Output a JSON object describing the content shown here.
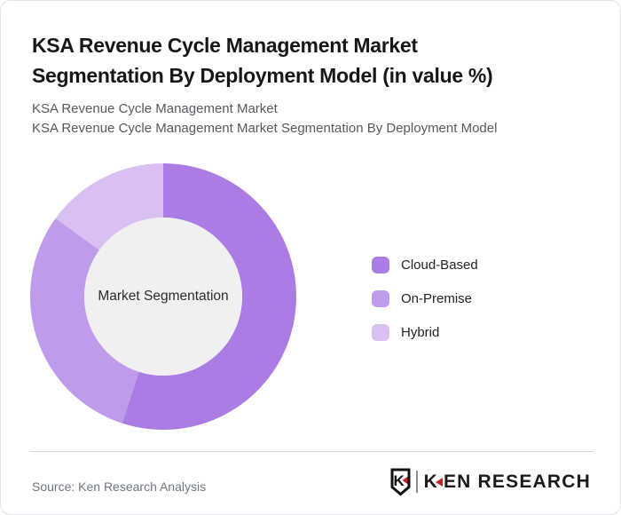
{
  "header": {
    "title_line1": "KSA Revenue Cycle Management Market",
    "title_line2": "Segmentation By Deployment Model (in value %)",
    "subtitle_line1": "KSA Revenue Cycle Management Market",
    "subtitle_line2": "KSA Revenue Cycle Management Market Segmentation By Deployment Model"
  },
  "chart_data": {
    "type": "pie",
    "subtype": "donut",
    "title": "KSA Revenue Cycle Management Market Segmentation By Deployment Model (in value %)",
    "center_label": "Market Segmentation",
    "categories": [
      "Cloud-Based",
      "On-Premise",
      "Hybrid"
    ],
    "values": [
      55,
      30,
      15
    ],
    "unit": "percent",
    "colors": [
      "#ab7de4",
      "#bf9ceb",
      "#d9c0f2"
    ],
    "hole_color": "#f0f0f0",
    "start_angle_deg": 0,
    "direction": "clockwise",
    "legend_position": "right",
    "data_labels_shown": false
  },
  "legend": {
    "items": [
      {
        "label": "Cloud-Based",
        "color": "#ab7de4"
      },
      {
        "label": "On-Premise",
        "color": "#bf9ceb"
      },
      {
        "label": "Hybrid",
        "color": "#d9c0f2"
      }
    ]
  },
  "footer": {
    "source": "Source: Ken Research Analysis",
    "brand": {
      "shield_letter": "K",
      "name_first_letter": "K",
      "name_rest": "EN RESEARCH",
      "accent_color": "#c2222a"
    }
  }
}
